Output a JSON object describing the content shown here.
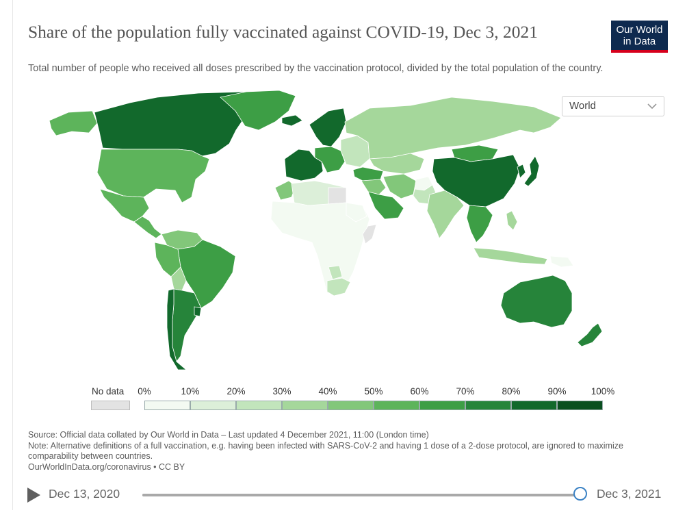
{
  "header": {
    "title": "Share of the population fully vaccinated against COVID-19, Dec 3, 2021",
    "subtitle": "Total number of people who received all doses prescribed by the vaccination protocol, divided by the total population of the country.",
    "logo_text": "Our World in Data"
  },
  "region_selector": {
    "value": "World"
  },
  "legend": {
    "no_data_label": "No data",
    "ticks": [
      "0%",
      "10%",
      "20%",
      "30%",
      "40%",
      "50%",
      "60%",
      "70%",
      "80%",
      "90%",
      "100%"
    ],
    "bin_colors": [
      "#f3faf2",
      "#dcefd9",
      "#c2e5bc",
      "#a5d79b",
      "#82c77a",
      "#5db45b",
      "#3d9e45",
      "#26843a",
      "#12692c",
      "#0a4f20"
    ],
    "no_data_color": "#e3e3e3"
  },
  "footer": {
    "source": "Source: Official data collated by Our World in Data – Last updated 4 December 2021, 11:00 (London time)",
    "note": "Note: Alternative definitions of a full vaccination, e.g. having been infected with SARS-CoV-2 and having 1 dose of a 2-dose protocol, are ignored to maximize comparability between countries.",
    "link": "OurWorldInData.org/coronavirus • CC BY"
  },
  "timeline": {
    "start_label": "Dec 13, 2020",
    "end_label": "Dec 3, 2021",
    "position": 1.0
  },
  "map_data": {
    "metric": "Share of the population fully vaccinated",
    "unit": "%",
    "regions": [
      {
        "name": "Canada",
        "bin": 8
      },
      {
        "name": "United States",
        "bin": 5
      },
      {
        "name": "Greenland",
        "bin": 6
      },
      {
        "name": "Alaska",
        "bin": 5
      },
      {
        "name": "Mexico",
        "bin": 5
      },
      {
        "name": "Central America",
        "bin": 5
      },
      {
        "name": "Venezuela",
        "bin": 4
      },
      {
        "name": "Brazil",
        "bin": 6
      },
      {
        "name": "Peru",
        "bin": 5
      },
      {
        "name": "Bolivia",
        "bin": 3
      },
      {
        "name": "Argentina",
        "bin": 7
      },
      {
        "name": "Chile",
        "bin": 8
      },
      {
        "name": "Uruguay",
        "bin": 8
      },
      {
        "name": "Iceland",
        "bin": 8
      },
      {
        "name": "Scandinavia",
        "bin": 8
      },
      {
        "name": "Western Europe",
        "bin": 8
      },
      {
        "name": "Central Europe",
        "bin": 6
      },
      {
        "name": "Eastern Europe",
        "bin": 2
      },
      {
        "name": "Russia",
        "bin": 3
      },
      {
        "name": "Kazakhstan",
        "bin": 3
      },
      {
        "name": "Turkey",
        "bin": 6
      },
      {
        "name": "Middle East",
        "bin": 4
      },
      {
        "name": "Saudi Arabia",
        "bin": 6
      },
      {
        "name": "Iran",
        "bin": 4
      },
      {
        "name": "Afghanistan",
        "bin": 0
      },
      {
        "name": "Pakistan",
        "bin": 2
      },
      {
        "name": "India",
        "bin": 3
      },
      {
        "name": "China",
        "bin": 8
      },
      {
        "name": "Mongolia",
        "bin": 6
      },
      {
        "name": "Japan",
        "bin": 8
      },
      {
        "name": "Korea",
        "bin": 8
      },
      {
        "name": "Southeast Asia",
        "bin": 6
      },
      {
        "name": "Indonesia",
        "bin": 3
      },
      {
        "name": "Philippines",
        "bin": 3
      },
      {
        "name": "Papua New Guinea",
        "bin": 0
      },
      {
        "name": "Australia",
        "bin": 7
      },
      {
        "name": "New Zealand",
        "bin": 7
      },
      {
        "name": "Morocco",
        "bin": 4
      },
      {
        "name": "North Africa",
        "bin": 1
      },
      {
        "name": "Sub-Saharan Africa",
        "bin": 0
      },
      {
        "name": "Sudan",
        "bin": 0
      },
      {
        "name": "Somalia",
        "bin": -1
      },
      {
        "name": "Libya",
        "bin": -1
      },
      {
        "name": "South Africa",
        "bin": 2
      },
      {
        "name": "Botswana",
        "bin": 2
      }
    ]
  }
}
